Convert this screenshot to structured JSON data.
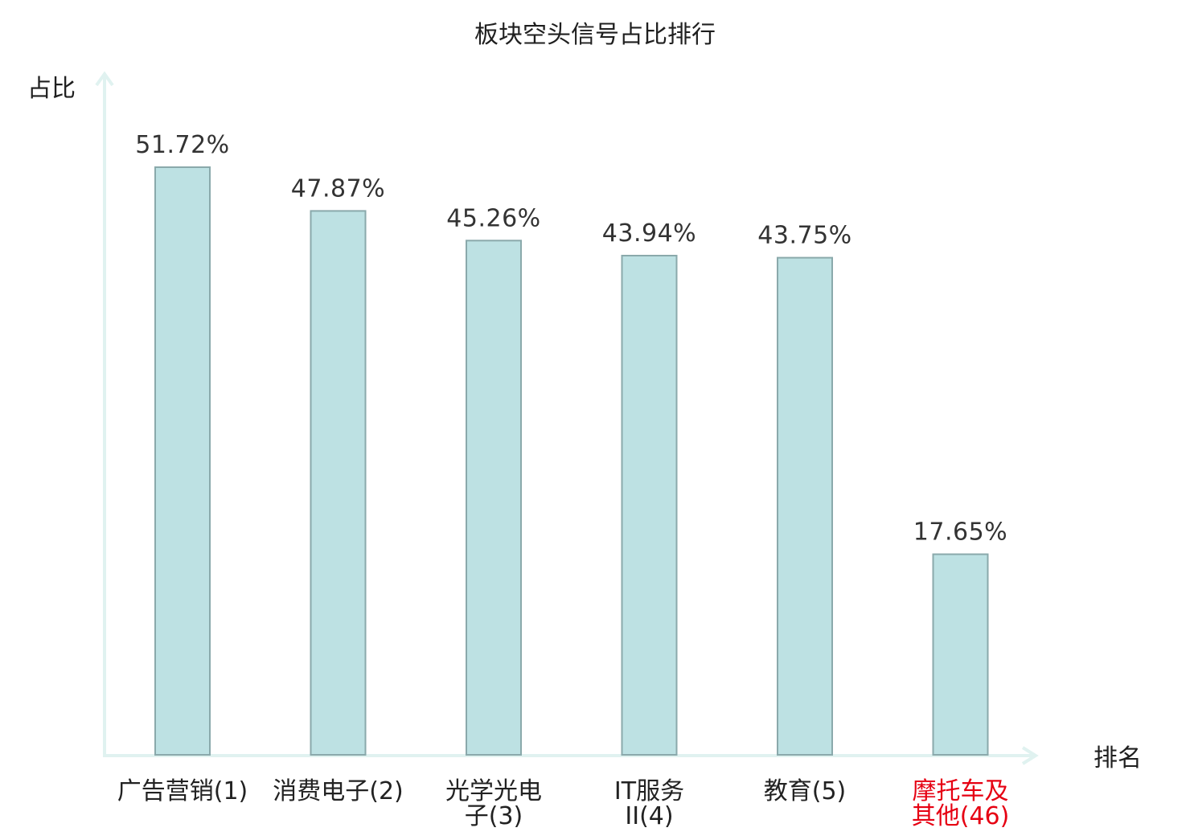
{
  "chart_data": {
    "type": "bar",
    "title": "板块空头信号占比排行",
    "ylabel": "占比",
    "xlabel": "排名",
    "categories": [
      "广告营销(1)",
      "消费电子(2)",
      "光学光电子(3)",
      "IT服务II(4)",
      "教育(5)",
      "摩托车及其他(46)"
    ],
    "category_lines": [
      [
        "广告营销(1)"
      ],
      [
        "消费电子(2)"
      ],
      [
        "光学光电",
        "子(3)"
      ],
      [
        "IT服务",
        "II(4)"
      ],
      [
        "教育(5)"
      ],
      [
        "摩托车及",
        "其他(46)"
      ]
    ],
    "values": [
      51.72,
      47.87,
      45.26,
      43.94,
      43.75,
      17.65
    ],
    "value_labels": [
      "51.72%",
      "47.87%",
      "45.26%",
      "43.94%",
      "43.75%",
      "17.65%"
    ],
    "ylim": [
      0,
      56
    ],
    "grid": false,
    "highlight_index": 5,
    "colors": {
      "bar_fill": "#bde1e3",
      "bar_stroke": "#8aa9ab",
      "axis": "#e0f2f0",
      "highlight_text": "#e60012",
      "text": "#222222"
    }
  }
}
